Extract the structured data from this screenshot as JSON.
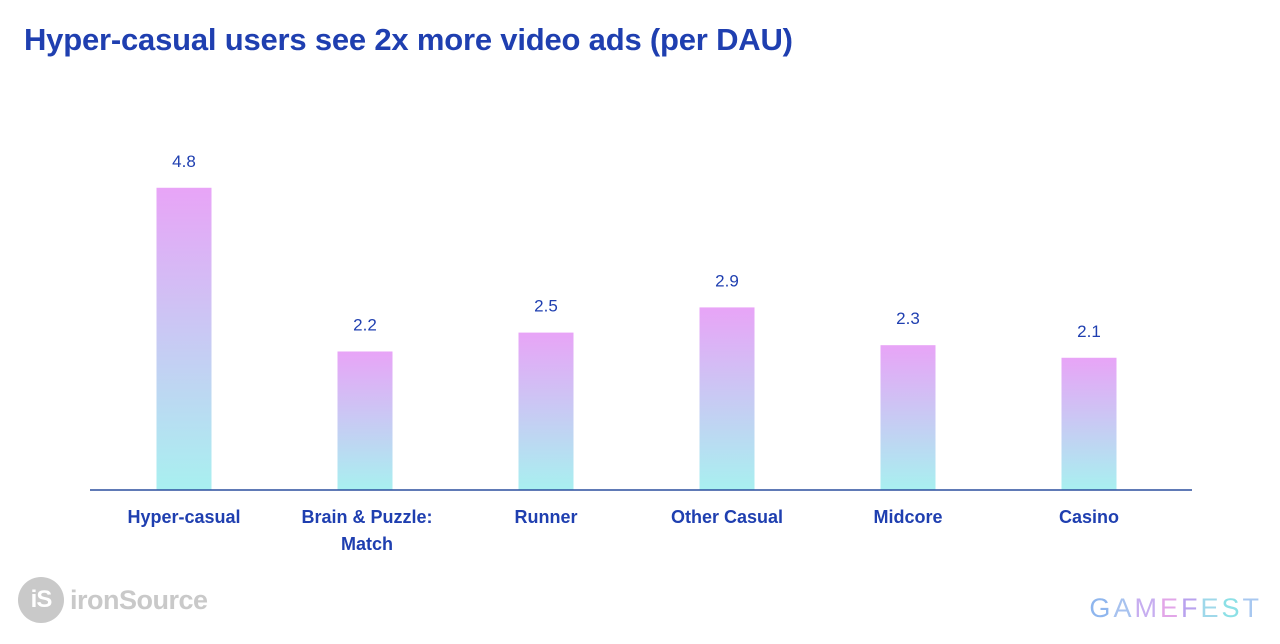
{
  "title": "Hyper-casual users see 2x more video ads  (per DAU)",
  "chart_data": {
    "type": "bar",
    "categories": [
      [
        "Hyper-casual"
      ],
      [
        "Brain & Puzzle:",
        "Match"
      ],
      [
        "Runner"
      ],
      [
        "Other Casual"
      ],
      [
        "Midcore"
      ],
      [
        "Casino"
      ]
    ],
    "values": [
      4.8,
      2.2,
      2.5,
      2.9,
      2.3,
      2.1
    ],
    "data_labels": [
      "4.8",
      "2.2",
      "2.5",
      "2.9",
      "2.3",
      "2.1"
    ],
    "ylim": [
      0,
      5.4
    ],
    "grid": false,
    "bar_gradient": {
      "top": "#e8a4f7",
      "bottom": "#a8f0f0"
    },
    "axis_color": "#2c4f9e",
    "label_color": "#1f3fb0"
  },
  "branding": {
    "left_badge": "iS",
    "left_name": "ironSource",
    "right_name": "GAMEFEST"
  }
}
